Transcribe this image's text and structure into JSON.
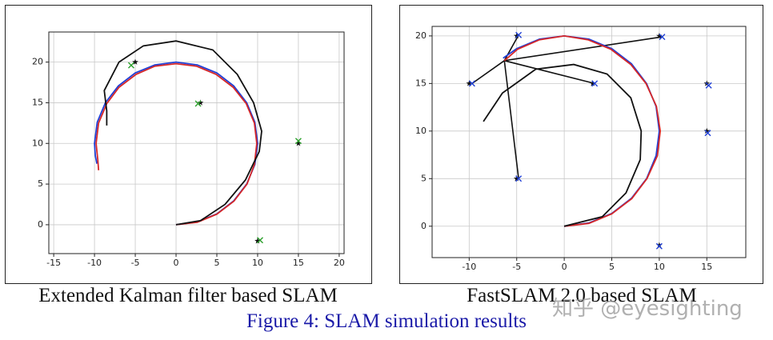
{
  "chart_data": [
    {
      "type": "line",
      "title": "Extended Kalman filter based SLAM",
      "xlim": [
        -15.6,
        20.6
      ],
      "ylim": [
        -3.55,
        23.7
      ],
      "xticks": [
        -15,
        -10,
        -5,
        0,
        5,
        10,
        15,
        20
      ],
      "yticks": [
        0,
        5,
        10,
        15,
        20
      ],
      "grid": true,
      "series": [
        {
          "color": "#1f3fd6",
          "linestyle": "solid",
          "x": [
            0,
            2.59,
            5,
            7.07,
            8.66,
            9.66,
            10,
            9.66,
            8.66,
            7.07,
            5,
            2.59,
            0,
            -2.59,
            -5,
            -7.07,
            -8.66,
            -9.66,
            -10,
            -9.9,
            -9.7
          ],
          "values": [
            0,
            0.34,
            1.34,
            2.93,
            5,
            7.41,
            10,
            12.59,
            15,
            17.07,
            18.66,
            19.66,
            20,
            19.66,
            18.66,
            17.07,
            15,
            12.59,
            10,
            8.5,
            7.5
          ]
        },
        {
          "color": "#d62728",
          "linestyle": "solid",
          "x": [
            0,
            2.6,
            5,
            7.1,
            8.7,
            9.6,
            9.9,
            9.6,
            8.6,
            7,
            4.9,
            2.5,
            0,
            -2.6,
            -4.9,
            -7,
            -8.5,
            -9.5,
            -9.8,
            -9.6,
            -9.5
          ],
          "values": [
            0,
            0.3,
            1.3,
            2.9,
            5,
            7.4,
            10,
            12.5,
            14.9,
            16.9,
            18.5,
            19.5,
            19.8,
            19.5,
            18.5,
            16.9,
            14.9,
            12.5,
            10,
            8,
            6.7
          ]
        },
        {
          "color": "#111111",
          "linestyle": "solid",
          "x": [
            0,
            3,
            6,
            8.5,
            10.2,
            10.5,
            9.5,
            7.5,
            4.5,
            0,
            -4,
            -7,
            -8.8,
            -8.5,
            -8.5
          ],
          "values": [
            0,
            0.5,
            2.5,
            5.5,
            9,
            11.5,
            15,
            18.5,
            21.5,
            22.6,
            22,
            20,
            16.5,
            14,
            12.2
          ]
        },
        {
          "color": "#111111",
          "linestyle": "none",
          "marker": "star",
          "x": [
            -5,
            3,
            15,
            10
          ],
          "values": [
            20,
            15,
            10,
            -2
          ]
        },
        {
          "color": "#2ca02c",
          "linestyle": "none",
          "marker": "x",
          "x": [
            -5.5,
            2.7,
            15,
            10.3
          ],
          "values": [
            19.6,
            14.9,
            10.3,
            -1.9
          ]
        }
      ]
    },
    {
      "type": "line",
      "title": "FastSLAM 2.0 based SLAM",
      "xlim": [
        -13.9,
        19.1
      ],
      "ylim": [
        -3.3,
        21
      ],
      "xticks": [
        -10,
        -5,
        0,
        5,
        10,
        15
      ],
      "yticks": [
        0,
        5,
        10,
        15,
        20
      ],
      "grid": true,
      "series": [
        {
          "color": "#1f3fd6",
          "linestyle": "solid",
          "x": [
            0,
            2.59,
            5,
            7.07,
            8.66,
            9.66,
            10,
            9.66,
            8.66,
            7.07,
            5,
            2.59,
            0,
            -2.59,
            -5,
            -6.43
          ],
          "values": [
            0,
            0.34,
            1.34,
            2.93,
            5,
            7.41,
            10,
            12.59,
            15,
            17.07,
            18.66,
            19.66,
            20,
            19.66,
            18.66,
            17.66
          ]
        },
        {
          "color": "#d62728",
          "linestyle": "solid",
          "x": [
            0,
            2.6,
            5,
            7.1,
            8.7,
            9.8,
            10.1,
            9.7,
            8.6,
            7,
            4.9,
            2.5,
            0,
            -2.6,
            -4.9,
            -6.3
          ],
          "values": [
            0,
            0.3,
            1.3,
            2.9,
            5,
            7.4,
            10,
            12.6,
            15,
            17,
            18.6,
            19.6,
            20,
            19.6,
            18.6,
            17.4
          ]
        },
        {
          "color": "#111111",
          "linestyle": "solid",
          "x": [
            0,
            4,
            6.5,
            8,
            8.1,
            7,
            4.5,
            1,
            -3,
            -6.5,
            -8.5
          ],
          "values": [
            0,
            1,
            3.5,
            7,
            10,
            13.5,
            16,
            17,
            16.5,
            14,
            11
          ]
        },
        {
          "color": "#111111",
          "linestyle": "none",
          "marker": "star",
          "x": [
            -10,
            -5,
            3,
            10,
            15,
            15,
            -5,
            10
          ],
          "values": [
            15,
            20,
            15,
            20,
            15,
            10,
            5,
            -2
          ]
        },
        {
          "color": "#1f3fd6",
          "linestyle": "none",
          "marker": "x",
          "x": [
            -9.7,
            -4.8,
            3.2,
            10.3,
            15.2,
            15.1,
            -4.8,
            10
          ],
          "values": [
            15,
            20.1,
            15,
            19.9,
            14.8,
            9.8,
            5,
            -2.1
          ]
        }
      ]
    }
  ],
  "caption": "Figure 4: SLAM simulation results",
  "watermark": "知乎 @eyesighting"
}
